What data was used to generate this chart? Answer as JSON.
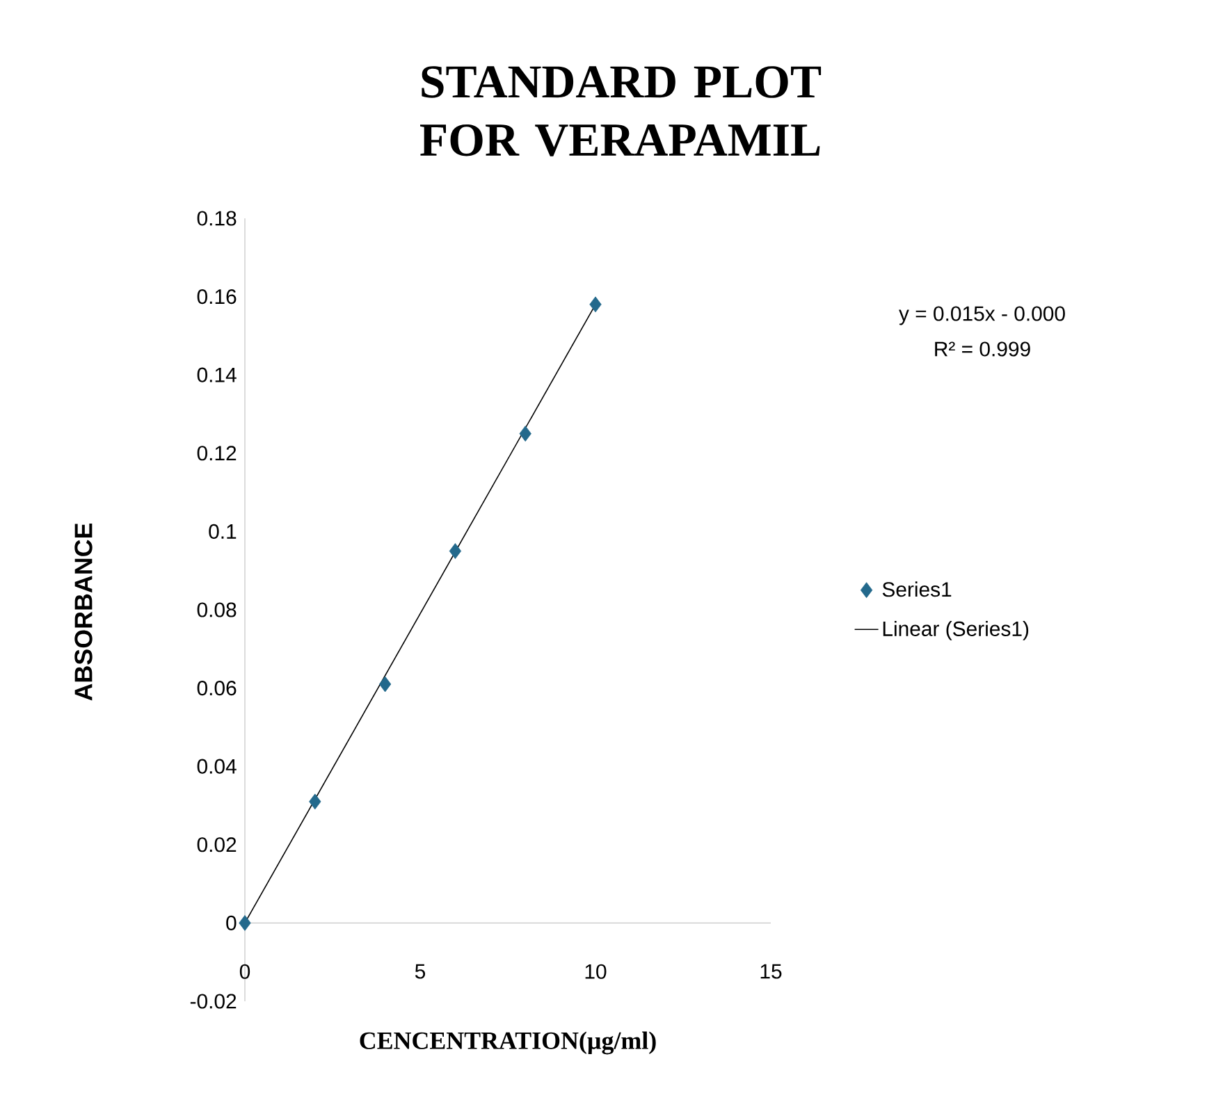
{
  "chart_data": {
    "type": "scatter",
    "title": "STANDARD PLOT FOR VERAPAMIL",
    "xlabel": "CENCENTRATION(µg/ml)",
    "ylabel": "ABSORBANCE",
    "xlim": [
      0,
      15
    ],
    "xticks": [
      0,
      5,
      10,
      15
    ],
    "ylim": [
      -0.02,
      0.18
    ],
    "yticks": [
      -0.02,
      0,
      0.02,
      0.04,
      0.06,
      0.08,
      0.1,
      0.12,
      0.14,
      0.16,
      0.18
    ],
    "legend": "right",
    "annotations": [
      "y = 0.015x - 0.000",
      "R² = 0.999"
    ],
    "series": [
      {
        "name": "Series1",
        "marker": "diamond",
        "color": "#23698c",
        "x": [
          0,
          2,
          4,
          6,
          8,
          10
        ],
        "values": [
          0,
          0.031,
          0.061,
          0.095,
          0.125,
          0.158
        ]
      },
      {
        "name": "Linear (Series1)",
        "type": "line",
        "color": "#000000",
        "line_style": "solid",
        "marker": "none",
        "x": [
          0,
          10
        ],
        "values": [
          0,
          0.158
        ]
      }
    ]
  }
}
